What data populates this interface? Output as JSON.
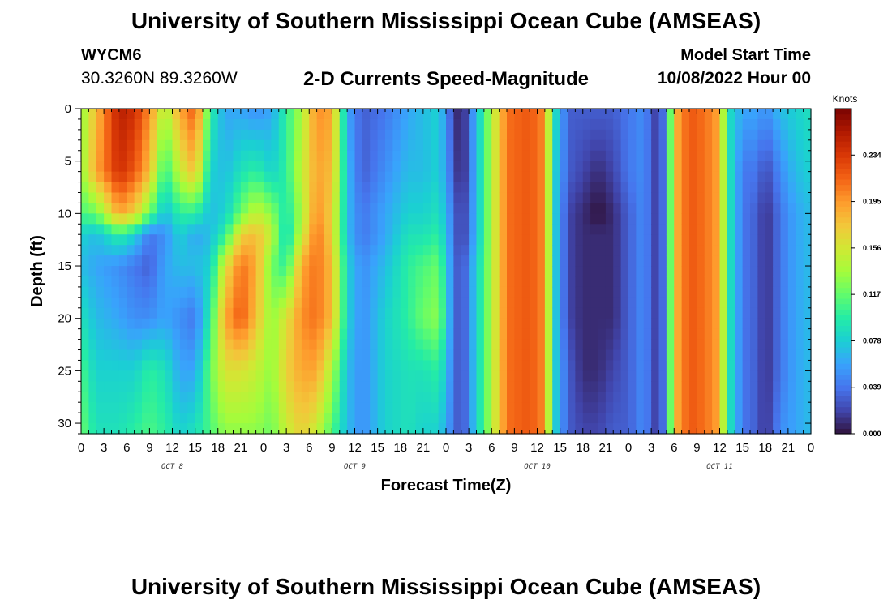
{
  "header": {
    "title": "University of Southern Mississippi Ocean Cube (AMSEAS)",
    "station_id": "WYCM6",
    "coordinates": "30.3260N  89.3260W",
    "subtitle": "2-D Currents Speed-Magnitude",
    "model_start_label": "Model Start Time",
    "model_start_value": "10/08/2022 Hour 00"
  },
  "footer": {
    "title": "University of Southern Mississippi Ocean Cube (AMSEAS)"
  },
  "chart_data": {
    "type": "heatmap",
    "title": "2-D Currents Speed-Magnitude",
    "xlabel": "Forecast Time(Z)",
    "ylabel": "Depth (ft)",
    "x_range_hours": [
      0,
      96
    ],
    "x_ticks": [
      "0",
      "3",
      "6",
      "9",
      "12",
      "15",
      "18",
      "21",
      "0",
      "3",
      "6",
      "9",
      "12",
      "15",
      "18",
      "21",
      "0",
      "3",
      "6",
      "9",
      "12",
      "15",
      "18",
      "21",
      "0",
      "3",
      "6",
      "9",
      "12",
      "15",
      "18",
      "21",
      "0"
    ],
    "day_labels": [
      "OCT 8",
      "OCT 9",
      "OCT 10",
      "OCT 11"
    ],
    "y_range_ft": [
      0,
      31
    ],
    "y_ticks": [
      "0",
      "5",
      "10",
      "15",
      "20",
      "25",
      "30"
    ],
    "colorbar": {
      "unit": "Knots",
      "range": [
        0,
        0.273
      ],
      "tick_labels": [
        "0.000",
        "0.039",
        "0.078",
        "0.117",
        "0.156",
        "0.195",
        "0.234"
      ],
      "tick_values": [
        0,
        0.039,
        0.078,
        0.117,
        0.156,
        0.195,
        0.234
      ],
      "colors": [
        "#30123b",
        "#4145ab",
        "#4675ed",
        "#39a2fc",
        "#1bcfd4",
        "#24eca6",
        "#61fc6c",
        "#a4fc3b",
        "#d1e834",
        "#f3c63a",
        "#fe9b2d",
        "#f36315",
        "#d93806",
        "#b11901",
        "#7a0402"
      ]
    },
    "depth_profile_ft": [
      0,
      6,
      10,
      12,
      15,
      20,
      25,
      31
    ],
    "speed_columns_knots": [
      {
        "hour": 0,
        "values": [
          0.13,
          0.13,
          0.11,
          0.08,
          0.07,
          0.09,
          0.11,
          0.12
        ]
      },
      {
        "hour": 2,
        "values": [
          0.18,
          0.19,
          0.12,
          0.07,
          0.06,
          0.07,
          0.08,
          0.09
        ]
      },
      {
        "hour": 5,
        "values": [
          0.25,
          0.24,
          0.19,
          0.1,
          0.05,
          0.06,
          0.08,
          0.09
        ]
      },
      {
        "hour": 7,
        "values": [
          0.24,
          0.22,
          0.17,
          0.08,
          0.04,
          0.05,
          0.08,
          0.1
        ]
      },
      {
        "hour": 9,
        "values": [
          0.2,
          0.18,
          0.12,
          0.04,
          0.03,
          0.05,
          0.1,
          0.11
        ]
      },
      {
        "hour": 11,
        "values": [
          0.14,
          0.1,
          0.07,
          0.05,
          0.06,
          0.06,
          0.09,
          0.1
        ]
      },
      {
        "hour": 13,
        "values": [
          0.19,
          0.15,
          0.1,
          0.08,
          0.07,
          0.05,
          0.06,
          0.08
        ]
      },
      {
        "hour": 15,
        "values": [
          0.22,
          0.18,
          0.1,
          0.06,
          0.07,
          0.04,
          0.06,
          0.09
        ]
      },
      {
        "hour": 17,
        "values": [
          0.1,
          0.08,
          0.07,
          0.07,
          0.08,
          0.1,
          0.12,
          0.11
        ]
      },
      {
        "hour": 19,
        "values": [
          0.06,
          0.07,
          0.08,
          0.1,
          0.16,
          0.19,
          0.16,
          0.13
        ]
      },
      {
        "hour": 21,
        "values": [
          0.06,
          0.09,
          0.12,
          0.17,
          0.21,
          0.22,
          0.16,
          0.13
        ]
      },
      {
        "hour": 23,
        "values": [
          0.05,
          0.1,
          0.15,
          0.18,
          0.19,
          0.18,
          0.15,
          0.13
        ]
      },
      {
        "hour": 25,
        "values": [
          0.06,
          0.08,
          0.13,
          0.15,
          0.12,
          0.13,
          0.13,
          0.12
        ]
      },
      {
        "hour": 27,
        "values": [
          0.1,
          0.1,
          0.09,
          0.08,
          0.1,
          0.16,
          0.17,
          0.15
        ]
      },
      {
        "hour": 29,
        "values": [
          0.14,
          0.15,
          0.14,
          0.15,
          0.19,
          0.2,
          0.19,
          0.17
        ]
      },
      {
        "hour": 31,
        "values": [
          0.2,
          0.19,
          0.2,
          0.21,
          0.21,
          0.21,
          0.19,
          0.15
        ]
      },
      {
        "hour": 33,
        "values": [
          0.19,
          0.18,
          0.17,
          0.17,
          0.18,
          0.18,
          0.14,
          0.11
        ]
      },
      {
        "hour": 35,
        "values": [
          0.06,
          0.07,
          0.07,
          0.07,
          0.08,
          0.08,
          0.07,
          0.07
        ]
      },
      {
        "hour": 37,
        "values": [
          0.03,
          0.03,
          0.04,
          0.04,
          0.05,
          0.05,
          0.05,
          0.05
        ]
      },
      {
        "hour": 40,
        "values": [
          0.04,
          0.05,
          0.06,
          0.06,
          0.07,
          0.08,
          0.08,
          0.08
        ]
      },
      {
        "hour": 43,
        "values": [
          0.06,
          0.07,
          0.08,
          0.09,
          0.1,
          0.1,
          0.09,
          0.09
        ]
      },
      {
        "hour": 45,
        "values": [
          0.07,
          0.07,
          0.08,
          0.09,
          0.11,
          0.12,
          0.09,
          0.08
        ]
      },
      {
        "hour": 47,
        "values": [
          0.08,
          0.08,
          0.09,
          0.1,
          0.12,
          0.13,
          0.1,
          0.08
        ]
      },
      {
        "hour": 49,
        "values": [
          0.02,
          0.03,
          0.04,
          0.04,
          0.04,
          0.04,
          0.04,
          0.04
        ]
      },
      {
        "hour": 50,
        "values": [
          0.0,
          0.0,
          0.01,
          0.01,
          0.02,
          0.02,
          0.02,
          0.02
        ]
      },
      {
        "hour": 52,
        "values": [
          0.07,
          0.07,
          0.07,
          0.07,
          0.08,
          0.08,
          0.08,
          0.08
        ]
      },
      {
        "hour": 54,
        "values": [
          0.14,
          0.14,
          0.14,
          0.14,
          0.14,
          0.14,
          0.14,
          0.14
        ]
      },
      {
        "hour": 56,
        "values": [
          0.21,
          0.21,
          0.21,
          0.21,
          0.21,
          0.21,
          0.21,
          0.21
        ]
      },
      {
        "hour": 59,
        "values": [
          0.22,
          0.22,
          0.22,
          0.22,
          0.22,
          0.22,
          0.22,
          0.22
        ]
      },
      {
        "hour": 61,
        "values": [
          0.2,
          0.2,
          0.2,
          0.2,
          0.2,
          0.2,
          0.2,
          0.2
        ]
      },
      {
        "hour": 62,
        "values": [
          0.1,
          0.09,
          0.09,
          0.09,
          0.09,
          0.09,
          0.09,
          0.09
        ]
      },
      {
        "hour": 64,
        "values": [
          0.03,
          0.03,
          0.02,
          0.02,
          0.02,
          0.02,
          0.03,
          0.03
        ]
      },
      {
        "hour": 66,
        "values": [
          0.03,
          0.02,
          0.01,
          0.01,
          0.01,
          0.01,
          0.01,
          0.02
        ]
      },
      {
        "hour": 68,
        "values": [
          0.03,
          0.01,
          0.0,
          0.01,
          0.01,
          0.01,
          0.01,
          0.02
        ]
      },
      {
        "hour": 70,
        "values": [
          0.03,
          0.02,
          0.01,
          0.01,
          0.01,
          0.01,
          0.02,
          0.03
        ]
      },
      {
        "hour": 72,
        "values": [
          0.04,
          0.04,
          0.03,
          0.03,
          0.03,
          0.03,
          0.03,
          0.03
        ]
      },
      {
        "hour": 74,
        "values": [
          0.05,
          0.05,
          0.05,
          0.05,
          0.05,
          0.05,
          0.05,
          0.05
        ]
      },
      {
        "hour": 76,
        "values": [
          0.01,
          0.01,
          0.01,
          0.01,
          0.01,
          0.01,
          0.01,
          0.01
        ]
      },
      {
        "hour": 77,
        "values": [
          0.06,
          0.06,
          0.06,
          0.06,
          0.06,
          0.06,
          0.06,
          0.06
        ]
      },
      {
        "hour": 78,
        "values": [
          0.18,
          0.18,
          0.18,
          0.18,
          0.18,
          0.18,
          0.18,
          0.18
        ]
      },
      {
        "hour": 80,
        "values": [
          0.22,
          0.22,
          0.22,
          0.22,
          0.22,
          0.22,
          0.22,
          0.22
        ]
      },
      {
        "hour": 82,
        "values": [
          0.21,
          0.21,
          0.21,
          0.21,
          0.21,
          0.21,
          0.21,
          0.21
        ]
      },
      {
        "hour": 84,
        "values": [
          0.19,
          0.19,
          0.19,
          0.19,
          0.19,
          0.19,
          0.19,
          0.19
        ]
      },
      {
        "hour": 85,
        "values": [
          0.09,
          0.1,
          0.1,
          0.1,
          0.1,
          0.1,
          0.1,
          0.1
        ]
      },
      {
        "hour": 87,
        "values": [
          0.06,
          0.04,
          0.04,
          0.04,
          0.04,
          0.04,
          0.04,
          0.04
        ]
      },
      {
        "hour": 89,
        "values": [
          0.06,
          0.04,
          0.03,
          0.03,
          0.03,
          0.03,
          0.03,
          0.03
        ]
      },
      {
        "hour": 90,
        "values": [
          0.05,
          0.02,
          0.01,
          0.01,
          0.01,
          0.01,
          0.01,
          0.01
        ]
      },
      {
        "hour": 92,
        "values": [
          0.07,
          0.05,
          0.04,
          0.04,
          0.04,
          0.04,
          0.04,
          0.05
        ]
      },
      {
        "hour": 94,
        "values": [
          0.08,
          0.07,
          0.06,
          0.06,
          0.06,
          0.06,
          0.06,
          0.06
        ]
      },
      {
        "hour": 96,
        "values": [
          0.09,
          0.08,
          0.07,
          0.07,
          0.07,
          0.07,
          0.07,
          0.07
        ]
      }
    ]
  }
}
